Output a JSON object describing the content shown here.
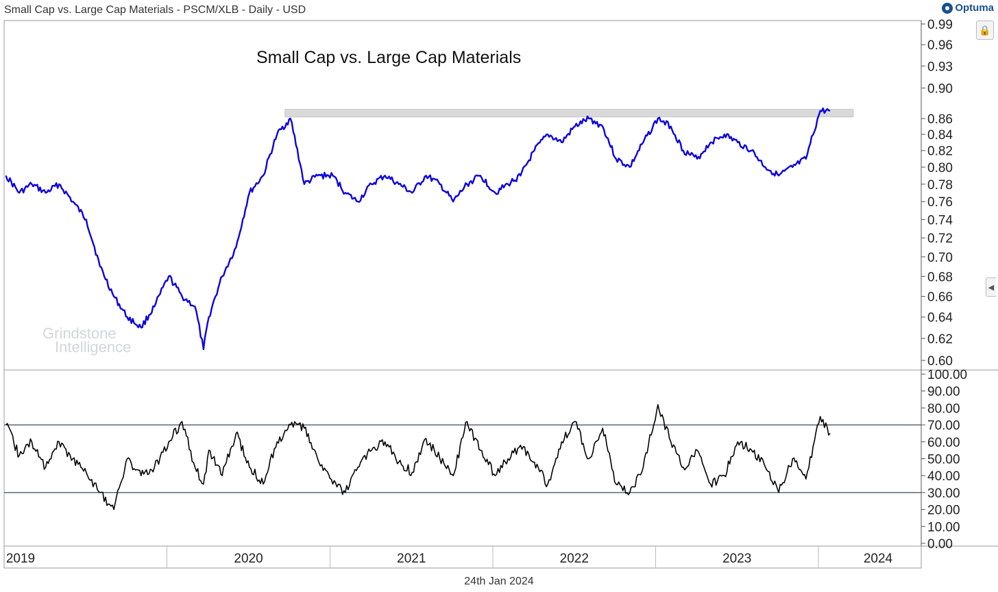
{
  "header": {
    "title": "Small Cap vs. Large Cap Materials - PSCM/XLB - Daily - USD"
  },
  "brand": {
    "name": "Optuma"
  },
  "watermark": {
    "line1": "Grindstone",
    "line2": "Intelligence"
  },
  "footer": {
    "date": "24th Jan 2024"
  },
  "icons": {
    "lock": "lock-icon",
    "collapse": "chevron-left-icon",
    "logo": "optuma-logo-icon"
  },
  "chart_data": [
    {
      "type": "line",
      "panel": "price-ratio",
      "title": "Small Cap vs. Large Cap Materials",
      "scale": "log",
      "ylim": [
        0.6,
        0.99
      ],
      "yticks": [
        "0.99",
        "0.96",
        "0.93",
        "0.90",
        "0.86",
        "0.84",
        "0.82",
        "0.80",
        "0.78",
        "0.76",
        "0.74",
        "0.72",
        "0.70",
        "0.68",
        "0.66",
        "0.64",
        "0.62",
        "0.60"
      ],
      "color": "#0b00e0",
      "x": [
        "2019-01-02",
        "2019-02-01",
        "2019-03-01",
        "2019-04-01",
        "2019-05-01",
        "2019-06-01",
        "2019-07-01",
        "2019-08-01",
        "2019-09-01",
        "2019-10-01",
        "2019-11-01",
        "2019-12-01",
        "2020-01-02",
        "2020-02-01",
        "2020-03-01",
        "2020-03-20",
        "2020-04-01",
        "2020-05-01",
        "2020-06-01",
        "2020-07-01",
        "2020-08-01",
        "2020-09-01",
        "2020-10-01",
        "2020-11-01",
        "2020-12-01",
        "2021-01-04",
        "2021-02-01",
        "2021-03-01",
        "2021-04-01",
        "2021-05-01",
        "2021-06-01",
        "2021-07-01",
        "2021-08-01",
        "2021-09-01",
        "2021-10-01",
        "2021-11-01",
        "2021-12-01",
        "2022-01-03",
        "2022-02-01",
        "2022-03-01",
        "2022-04-01",
        "2022-05-01",
        "2022-06-01",
        "2022-07-01",
        "2022-08-01",
        "2022-09-01",
        "2022-10-01",
        "2022-11-01",
        "2022-12-01",
        "2023-01-03",
        "2023-02-01",
        "2023-03-01",
        "2023-04-01",
        "2023-05-01",
        "2023-06-01",
        "2023-07-01",
        "2023-08-01",
        "2023-09-01",
        "2023-10-01",
        "2023-11-01",
        "2023-12-01",
        "2024-01-02",
        "2024-01-24"
      ],
      "y": [
        0.79,
        0.77,
        0.78,
        0.77,
        0.78,
        0.76,
        0.74,
        0.69,
        0.66,
        0.64,
        0.63,
        0.65,
        0.68,
        0.66,
        0.65,
        0.61,
        0.64,
        0.68,
        0.71,
        0.77,
        0.79,
        0.84,
        0.86,
        0.78,
        0.79,
        0.79,
        0.77,
        0.76,
        0.78,
        0.79,
        0.78,
        0.77,
        0.79,
        0.78,
        0.76,
        0.78,
        0.79,
        0.77,
        0.78,
        0.79,
        0.82,
        0.84,
        0.83,
        0.85,
        0.86,
        0.85,
        0.81,
        0.8,
        0.83,
        0.86,
        0.85,
        0.82,
        0.81,
        0.83,
        0.84,
        0.83,
        0.82,
        0.8,
        0.79,
        0.8,
        0.81,
        0.87,
        0.87
      ],
      "resistance_band": {
        "from": "2020-10-01",
        "to": "2024-01-24",
        "low": 0.862,
        "high": 0.872
      }
    },
    {
      "type": "line",
      "panel": "oscillator",
      "ylim": [
        0,
        100
      ],
      "yticks": [
        "100.00",
        "90.00",
        "80.00",
        "70.00",
        "60.00",
        "50.00",
        "40.00",
        "30.00",
        "20.00",
        "10.00",
        "0.00"
      ],
      "reference_lines": [
        70,
        30
      ],
      "color": "#000000",
      "x": [
        "2019-01-02",
        "2019-02-01",
        "2019-03-01",
        "2019-04-01",
        "2019-05-01",
        "2019-06-01",
        "2019-07-01",
        "2019-08-01",
        "2019-09-01",
        "2019-10-01",
        "2019-11-01",
        "2019-12-01",
        "2020-01-02",
        "2020-02-01",
        "2020-03-01",
        "2020-03-20",
        "2020-04-01",
        "2020-05-01",
        "2020-06-01",
        "2020-07-01",
        "2020-08-01",
        "2020-09-01",
        "2020-10-01",
        "2020-11-01",
        "2020-12-01",
        "2021-01-04",
        "2021-02-01",
        "2021-03-01",
        "2021-04-01",
        "2021-05-01",
        "2021-06-01",
        "2021-07-01",
        "2021-08-01",
        "2021-09-01",
        "2021-10-01",
        "2021-11-01",
        "2021-12-01",
        "2022-01-03",
        "2022-02-01",
        "2022-03-01",
        "2022-04-01",
        "2022-05-01",
        "2022-06-01",
        "2022-07-01",
        "2022-08-01",
        "2022-09-01",
        "2022-10-01",
        "2022-11-01",
        "2022-12-01",
        "2023-01-03",
        "2023-02-01",
        "2023-03-01",
        "2023-04-01",
        "2023-05-01",
        "2023-06-01",
        "2023-07-01",
        "2023-08-01",
        "2023-09-01",
        "2023-10-01",
        "2023-11-01",
        "2023-12-01",
        "2024-01-02",
        "2024-01-24"
      ],
      "y": [
        70,
        52,
        60,
        45,
        60,
        50,
        42,
        30,
        20,
        50,
        40,
        45,
        60,
        72,
        45,
        35,
        55,
        40,
        65,
        45,
        35,
        60,
        70,
        68,
        50,
        35,
        30,
        45,
        55,
        60,
        48,
        42,
        62,
        50,
        40,
        72,
        55,
        40,
        50,
        58,
        48,
        35,
        60,
        72,
        50,
        68,
        35,
        30,
        45,
        82,
        60,
        45,
        55,
        35,
        40,
        60,
        55,
        45,
        30,
        50,
        38,
        75,
        65
      ]
    }
  ],
  "axis": {
    "x_labels": [
      "2019",
      "2020",
      "2021",
      "2022",
      "2023",
      "2024"
    ],
    "x_label_dates": [
      "2019-01-01",
      "2020-01-01",
      "2021-01-01",
      "2022-01-01",
      "2023-01-01",
      "2024-01-01"
    ]
  }
}
